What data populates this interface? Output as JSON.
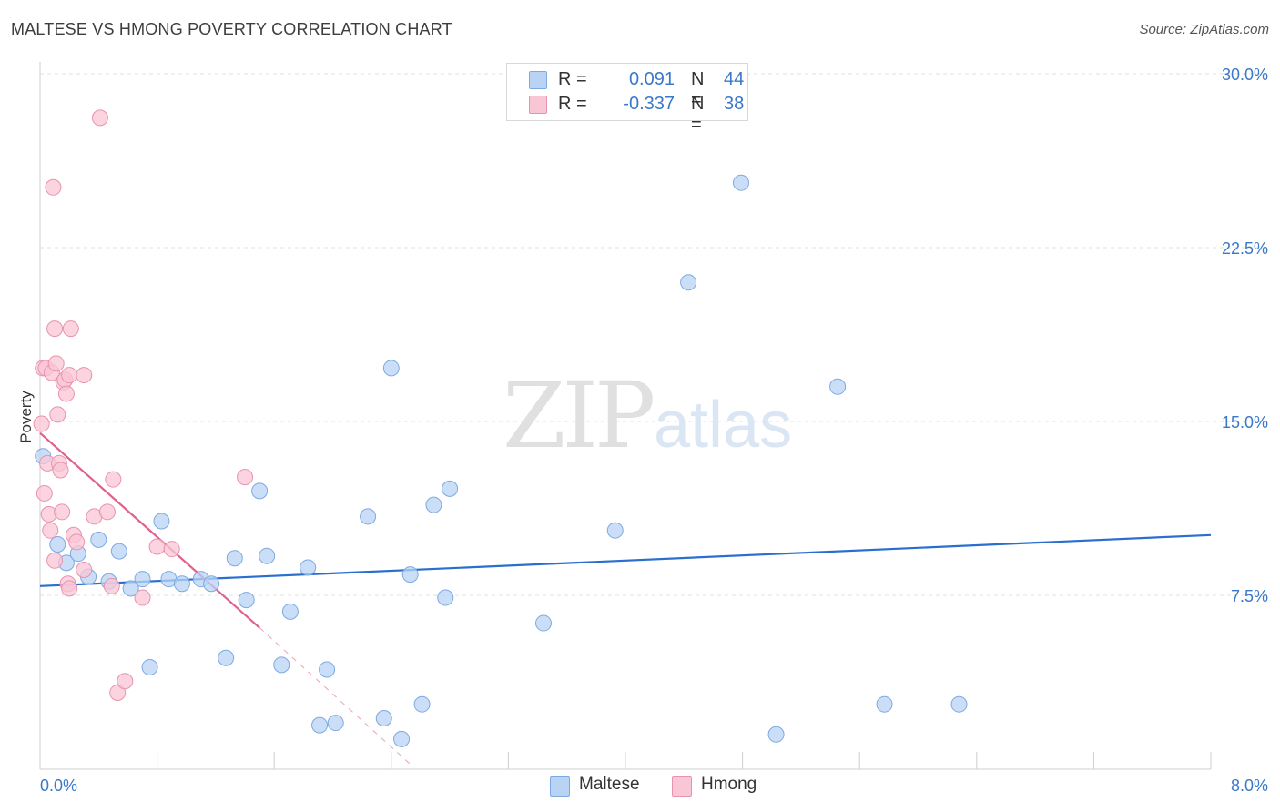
{
  "header": {
    "title": "MALTESE VS HMONG POVERTY CORRELATION CHART",
    "source": "Source: ZipAtlas.com"
  },
  "watermark": {
    "zip": "ZIP",
    "atlas": "atlas"
  },
  "legend": {
    "rows": [
      {
        "r_label": "R =",
        "r_value": "0.091",
        "n_label": "N =",
        "n_value": "44",
        "color": "#b9d3f5",
        "border": "#7ea9e0"
      },
      {
        "r_label": "R =",
        "r_value": "-0.337",
        "n_label": "N =",
        "n_value": "38",
        "color": "#f9c6d6",
        "border": "#e992b0"
      }
    ]
  },
  "bottom_legend": [
    {
      "label": "Maltese",
      "color": "#b9d3f5",
      "border": "#7ea9e0"
    },
    {
      "label": "Hmong",
      "color": "#f9c6d6",
      "border": "#e992b0"
    }
  ],
  "chart_data": {
    "type": "scatter",
    "title": "MALTESE VS HMONG POVERTY CORRELATION CHART",
    "xlabel": "",
    "ylabel": "Poverty",
    "xlim": [
      0,
      8
    ],
    "ylim": [
      0,
      30
    ],
    "x_tick_labels": [
      "0.0%",
      "8.0%"
    ],
    "y_ticks": [
      7.5,
      15.0,
      22.5,
      30.0
    ],
    "y_tick_labels": [
      "7.5%",
      "15.0%",
      "22.5%",
      "30.0%"
    ],
    "series": [
      {
        "name": "Maltese",
        "color": "#b9d3f5",
        "stroke": "#7ea9e0",
        "line_color": "#2a6fce",
        "trend": {
          "x": [
            0,
            8
          ],
          "y": [
            7.9,
            10.1
          ]
        },
        "points": [
          [
            0.02,
            13.5
          ],
          [
            0.12,
            9.7
          ],
          [
            0.18,
            8.9
          ],
          [
            0.26,
            9.3
          ],
          [
            0.33,
            8.3
          ],
          [
            0.4,
            9.9
          ],
          [
            0.47,
            8.1
          ],
          [
            0.54,
            9.4
          ],
          [
            0.62,
            7.8
          ],
          [
            0.7,
            8.2
          ],
          [
            0.75,
            4.4
          ],
          [
            0.83,
            10.7
          ],
          [
            0.88,
            8.2
          ],
          [
            0.97,
            8.0
          ],
          [
            1.1,
            8.2
          ],
          [
            1.17,
            8.0
          ],
          [
            1.27,
            4.8
          ],
          [
            1.33,
            9.1
          ],
          [
            1.41,
            7.3
          ],
          [
            1.5,
            12.0
          ],
          [
            1.55,
            9.2
          ],
          [
            1.65,
            4.5
          ],
          [
            1.71,
            6.8
          ],
          [
            1.83,
            8.7
          ],
          [
            1.91,
            1.9
          ],
          [
            1.96,
            4.3
          ],
          [
            2.02,
            2.0
          ],
          [
            2.24,
            10.9
          ],
          [
            2.35,
            2.2
          ],
          [
            2.4,
            17.3
          ],
          [
            2.47,
            1.3
          ],
          [
            2.53,
            8.4
          ],
          [
            2.61,
            2.8
          ],
          [
            2.69,
            11.4
          ],
          [
            2.77,
            7.4
          ],
          [
            2.8,
            12.1
          ],
          [
            3.44,
            6.3
          ],
          [
            3.93,
            10.3
          ],
          [
            4.43,
            21.0
          ],
          [
            4.79,
            25.3
          ],
          [
            5.03,
            1.5
          ],
          [
            5.45,
            16.5
          ],
          [
            5.77,
            2.8
          ],
          [
            6.28,
            2.8
          ]
        ]
      },
      {
        "name": "Hmong",
        "color": "#f9c6d6",
        "stroke": "#e992b0",
        "line_color": "#e0608e",
        "trend": {
          "x": [
            0,
            1.5
          ],
          "y": [
            14.5,
            6.1
          ]
        },
        "trend_dashed": {
          "x": [
            1.5,
            2.55
          ],
          "y": [
            6.1,
            0.1
          ]
        },
        "points": [
          [
            0.01,
            14.9
          ],
          [
            0.02,
            17.3
          ],
          [
            0.03,
            11.9
          ],
          [
            0.04,
            17.3
          ],
          [
            0.05,
            13.2
          ],
          [
            0.06,
            11.0
          ],
          [
            0.07,
            10.3
          ],
          [
            0.08,
            17.1
          ],
          [
            0.09,
            25.1
          ],
          [
            0.1,
            19.0
          ],
          [
            0.1,
            9.0
          ],
          [
            0.11,
            17.5
          ],
          [
            0.12,
            15.3
          ],
          [
            0.13,
            13.2
          ],
          [
            0.14,
            12.9
          ],
          [
            0.15,
            11.1
          ],
          [
            0.16,
            16.7
          ],
          [
            0.17,
            16.8
          ],
          [
            0.18,
            16.2
          ],
          [
            0.19,
            8.0
          ],
          [
            0.2,
            7.8
          ],
          [
            0.2,
            17.0
          ],
          [
            0.21,
            19.0
          ],
          [
            0.23,
            10.1
          ],
          [
            0.25,
            9.8
          ],
          [
            0.3,
            17.0
          ],
          [
            0.3,
            8.6
          ],
          [
            0.37,
            10.9
          ],
          [
            0.41,
            28.1
          ],
          [
            0.46,
            11.1
          ],
          [
            0.49,
            7.9
          ],
          [
            0.5,
            12.5
          ],
          [
            0.53,
            3.3
          ],
          [
            0.58,
            3.8
          ],
          [
            0.7,
            7.4
          ],
          [
            0.8,
            9.6
          ],
          [
            0.9,
            9.5
          ],
          [
            1.4,
            12.6
          ]
        ]
      }
    ]
  }
}
